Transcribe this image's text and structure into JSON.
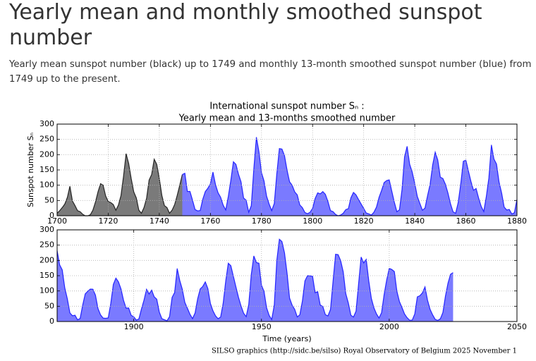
{
  "header": {
    "title": "Yearly mean and monthly smoothed sunspot number",
    "description": "Yearly mean sunspot number (black) up to 1749 and monthly 13-month smoothed sunspot number (blue) from 1749 up to the present."
  },
  "footer": "SILSO graphics (http://sidc.be/silso)  Royal Observatory of Belgium  2025 November 1",
  "chart_data": [
    {
      "type": "area",
      "title": "International sunspot number Sₙ :",
      "subtitle": "Yearly mean and 13-months smoothed number",
      "ylabel": "Sunspot number Sₙ",
      "xlim": [
        1700,
        1880
      ],
      "xticks": [
        1700,
        1720,
        1740,
        1760,
        1780,
        1800,
        1820,
        1840,
        1860,
        1880
      ],
      "ylim": [
        0,
        300
      ],
      "yticks": [
        0,
        50,
        100,
        150,
        200,
        250,
        300
      ],
      "grid": true,
      "series": [
        {
          "color": "#000000",
          "x": [
            1700,
            1701,
            1702,
            1703,
            1704,
            1705,
            1706,
            1707,
            1708,
            1709,
            1710,
            1711,
            1712,
            1713,
            1714,
            1715,
            1716,
            1717,
            1718,
            1719,
            1720,
            1721,
            1722,
            1723,
            1724,
            1725,
            1726,
            1727,
            1728,
            1729,
            1730,
            1731,
            1732,
            1733,
            1734,
            1735,
            1736,
            1737,
            1738,
            1739,
            1740,
            1741,
            1742,
            1743,
            1744,
            1745,
            1746,
            1747,
            1748,
            1749
          ],
          "values": [
            8.3,
            16.7,
            26.7,
            38.3,
            60,
            96.7,
            48.3,
            33.3,
            16.7,
            13.3,
            5,
            0,
            0,
            3.3,
            18.3,
            45,
            78.3,
            105,
            100,
            65,
            46.7,
            43.3,
            36.7,
            18.3,
            35,
            66.7,
            130,
            203.3,
            171.7,
            121.7,
            78.3,
            58.3,
            18.3,
            8.3,
            26.7,
            56.7,
            116.7,
            135,
            185,
            168.3,
            121.7,
            66.7,
            33.3,
            26.7,
            8.3,
            18.3,
            36.7,
            66.7,
            100,
            134.8
          ]
        },
        {
          "color": "#0000ff",
          "x": [
            1749,
            1750,
            1751,
            1752,
            1753,
            1754,
            1755,
            1756,
            1757,
            1758,
            1759,
            1760,
            1761,
            1762,
            1763,
            1764,
            1765,
            1766,
            1767,
            1768,
            1769,
            1770,
            1771,
            1772,
            1773,
            1774,
            1775,
            1776,
            1777,
            1778,
            1779,
            1780,
            1781,
            1782,
            1783,
            1784,
            1785,
            1786,
            1787,
            1788,
            1789,
            1790,
            1791,
            1792,
            1793,
            1794,
            1795,
            1796,
            1797,
            1798,
            1799,
            1800,
            1801,
            1802,
            1803,
            1804,
            1805,
            1806,
            1807,
            1808,
            1809,
            1810,
            1811,
            1812,
            1813,
            1814,
            1815,
            1816,
            1817,
            1818,
            1819,
            1820,
            1821,
            1822,
            1823,
            1824,
            1825,
            1826,
            1827,
            1828,
            1829,
            1830,
            1831,
            1832,
            1833,
            1834,
            1835,
            1836,
            1837,
            1838,
            1839,
            1840,
            1841,
            1842,
            1843,
            1844,
            1845,
            1846,
            1847,
            1848,
            1849,
            1850,
            1851,
            1852,
            1853,
            1854,
            1855,
            1856,
            1857,
            1858,
            1859,
            1860,
            1861,
            1862,
            1863,
            1864,
            1865,
            1866,
            1867,
            1868,
            1869,
            1870,
            1871,
            1872,
            1873,
            1874,
            1875,
            1876,
            1877,
            1878,
            1879,
            1880
          ],
          "values": [
            134.8,
            139.0,
            79.5,
            79.7,
            51.2,
            20.3,
            16.0,
            17.0,
            54.0,
            79.3,
            90.0,
            104.8,
            143.2,
            102.0,
            75.2,
            60.7,
            34.8,
            19.0,
            63.0,
            116.3,
            176.8,
            168.0,
            136.0,
            110.8,
            58.0,
            51.0,
            11.7,
            33.0,
            154.2,
            257.3,
            209.8,
            141.3,
            113.5,
            64.2,
            38.0,
            17.0,
            40.2,
            138.2,
            220.0,
            218.2,
            196.8,
            149.8,
            111.0,
            100.0,
            78.2,
            68.3,
            35.5,
            26.7,
            10.7,
            6.8,
            11.3,
            24.2,
            56.7,
            75.0,
            71.8,
            79.2,
            70.3,
            46.8,
            16.8,
            13.5,
            4.2,
            0.0,
            2.3,
            8.3,
            20.3,
            23.2,
            59.0,
            76.3,
            68.3,
            52.9,
            38.5,
            24.2,
            9.2,
            6.3,
            2.2,
            11.4,
            28.2,
            59.9,
            83.0,
            108.5,
            115.2,
            117.4,
            80.8,
            44.3,
            13.4,
            19.5,
            85.8,
            192.7,
            227.3,
            168.7,
            143.0,
            105.5,
            63.3,
            40.3,
            18.1,
            25.1,
            65.8,
            102.7,
            166.3,
            208.3,
            182.5,
            126.3,
            122.0,
            102.7,
            74.1,
            39.0,
            12.7,
            8.2,
            43.4,
            104.4,
            178.3,
            182.2,
            146.6,
            112.1,
            83.5,
            89.2,
            57.8,
            30.7,
            13.9,
            62.8,
            123.6,
            232.0,
            185.3,
            169.2,
            110.1,
            74.5,
            28.3,
            18.9,
            20.7,
            5.7,
            10.0,
            53.7
          ]
        }
      ]
    },
    {
      "type": "area",
      "xlabel": "Time (years)",
      "xlim": [
        1870,
        2050
      ],
      "xticks": [
        1900,
        1950,
        2000,
        2050
      ],
      "ylim": [
        0,
        300
      ],
      "yticks": [
        0,
        50,
        100,
        150,
        200,
        250,
        300
      ],
      "grid": true,
      "series": [
        {
          "color": "#0000ff",
          "x": [
            1870,
            1871,
            1872,
            1873,
            1874,
            1875,
            1876,
            1877,
            1878,
            1879,
            1880,
            1881,
            1882,
            1883,
            1884,
            1885,
            1886,
            1887,
            1888,
            1889,
            1890,
            1891,
            1892,
            1893,
            1894,
            1895,
            1896,
            1897,
            1898,
            1899,
            1900,
            1901,
            1902,
            1903,
            1904,
            1905,
            1906,
            1907,
            1908,
            1909,
            1910,
            1911,
            1912,
            1913,
            1914,
            1915,
            1916,
            1917,
            1918,
            1919,
            1920,
            1921,
            1922,
            1923,
            1924,
            1925,
            1926,
            1927,
            1928,
            1929,
            1930,
            1931,
            1932,
            1933,
            1934,
            1935,
            1936,
            1937,
            1938,
            1939,
            1940,
            1941,
            1942,
            1943,
            1944,
            1945,
            1946,
            1947,
            1948,
            1949,
            1950,
            1951,
            1952,
            1953,
            1954,
            1955,
            1956,
            1957,
            1958,
            1959,
            1960,
            1961,
            1962,
            1963,
            1964,
            1965,
            1966,
            1967,
            1968,
            1969,
            1970,
            1971,
            1972,
            1973,
            1974,
            1975,
            1976,
            1977,
            1978,
            1979,
            1980,
            1981,
            1982,
            1983,
            1984,
            1985,
            1986,
            1987,
            1988,
            1989,
            1990,
            1991,
            1992,
            1993,
            1994,
            1995,
            1996,
            1997,
            1998,
            1999,
            2000,
            2001,
            2002,
            2003,
            2004,
            2005,
            2006,
            2007,
            2008,
            2009,
            2010,
            2011,
            2012,
            2013,
            2014,
            2015,
            2016,
            2017,
            2018,
            2019,
            2020,
            2021,
            2022,
            2023,
            2024,
            2025
          ],
          "values": [
            232.0,
            185.3,
            169.2,
            110.1,
            74.5,
            28.3,
            18.9,
            20.7,
            5.7,
            10.0,
            53.7,
            90.5,
            99.0,
            106.1,
            105.8,
            86.3,
            42.4,
            21.8,
            11.2,
            10.4,
            11.8,
            59.5,
            121.7,
            142.0,
            130.0,
            106.6,
            69.4,
            43.8,
            44.4,
            20.2,
            15.7,
            4.6,
            8.5,
            40.8,
            70.1,
            105.5,
            90.1,
            102.8,
            80.9,
            73.2,
            30.9,
            9.5,
            6.0,
            2.4,
            16.1,
            79.0,
            95.0,
            173.6,
            134.6,
            105.7,
            62.7,
            43.5,
            23.7,
            9.7,
            27.9,
            74.0,
            106.5,
            114.7,
            129.7,
            108.2,
            59.4,
            35.1,
            18.6,
            9.2,
            14.6,
            60.2,
            132.8,
            190.6,
            182.6,
            148.0,
            113.0,
            79.2,
            50.8,
            27.1,
            16.1,
            55.3,
            154.3,
            214.7,
            193.0,
            190.7,
            118.9,
            98.3,
            45.0,
            20.1,
            6.6,
            54.2,
            200.7,
            269.3,
            261.7,
            225.1,
            159.0,
            76.4,
            53.4,
            39.9,
            15.0,
            22.0,
            66.8,
            132.9,
            150.0,
            149.4,
            148.0,
            94.4,
            97.6,
            54.1,
            49.2,
            22.5,
            18.4,
            39.3,
            131.0,
            220.1,
            218.9,
            198.9,
            162.4,
            91.0,
            60.5,
            20.6,
            14.8,
            33.9,
            123.0,
            211.1,
            191.8,
            203.3,
            133.0,
            76.1,
            44.9,
            25.1,
            11.6,
            28.9,
            88.3,
            136.3,
            173.9,
            170.4,
            163.6,
            99.3,
            65.3,
            45.8,
            24.7,
            12.6,
            4.2,
            4.8,
            24.9,
            80.8,
            84.5,
            94.0,
            113.3,
            69.8,
            39.8,
            21.7,
            7.0,
            3.6,
            8.8,
            29.6,
            83.2,
            125.5,
            154.7,
            160
          ]
        }
      ]
    }
  ]
}
